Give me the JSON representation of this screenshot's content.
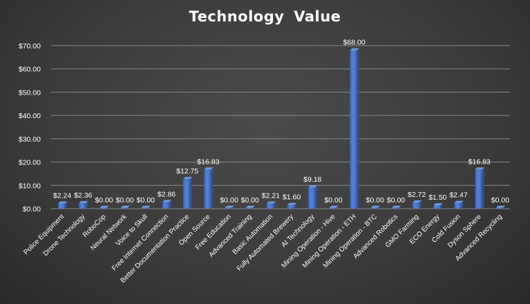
{
  "chart_data": {
    "type": "bar",
    "title": "Technology  Value",
    "xlabel": "",
    "ylabel": "",
    "ylim": [
      0,
      70
    ],
    "yticks": [
      "$0.00",
      "$10.00",
      "$20.00",
      "$30.00",
      "$40.00",
      "$50.00",
      "$60.00",
      "$70.00"
    ],
    "ytick_values": [
      0,
      10,
      20,
      30,
      40,
      50,
      60,
      70
    ],
    "grid": true,
    "legend": "none",
    "categories": [
      "Police Equipment",
      "Drone Technology",
      "RoboCop",
      "Neural Network",
      "Voice to Skull",
      "Free Internet Connection",
      "Better Documentation Practice",
      "Open Source",
      "Free Education",
      "Advanced Training",
      "Basic Automation",
      "Fully Automated Brewery",
      "AI Technology",
      "Mining Operation - Hive",
      "Mining Operation - ETH",
      "Mining Operation - BTC",
      "Advanced Robotics",
      "GMO Farming",
      "ECO Energy",
      "Cold Fusion",
      "Dyson Sphere",
      "Advanced Recycling"
    ],
    "values": [
      2.24,
      2.36,
      0,
      0,
      0,
      2.86,
      12.75,
      16.83,
      0,
      0,
      2.21,
      1.6,
      9.18,
      0,
      68,
      0,
      0,
      2.72,
      1.5,
      2.47,
      16.83,
      0
    ],
    "data_labels": [
      "$2.24",
      "$2.36",
      "$0.00",
      "$0.00",
      "$0.00",
      "$2.86",
      "$12.75",
      "$16.83",
      "$0.00",
      "$0.00",
      "$2.21",
      "$1.60",
      "$9.18",
      "$0.00",
      "$68.00",
      "$0.00",
      "$0.00",
      "$2.72",
      "$1.50",
      "$2.47",
      "$16.83",
      "$0.00"
    ],
    "colors": {
      "bar_front": "#4472c4",
      "bar_front_light": "#5b8be0",
      "bar_side": "#2f528f",
      "bar_top": "#6f97dc",
      "grid": "#8a8a8a",
      "text": "#ffffff",
      "title": "#ffffff"
    }
  }
}
